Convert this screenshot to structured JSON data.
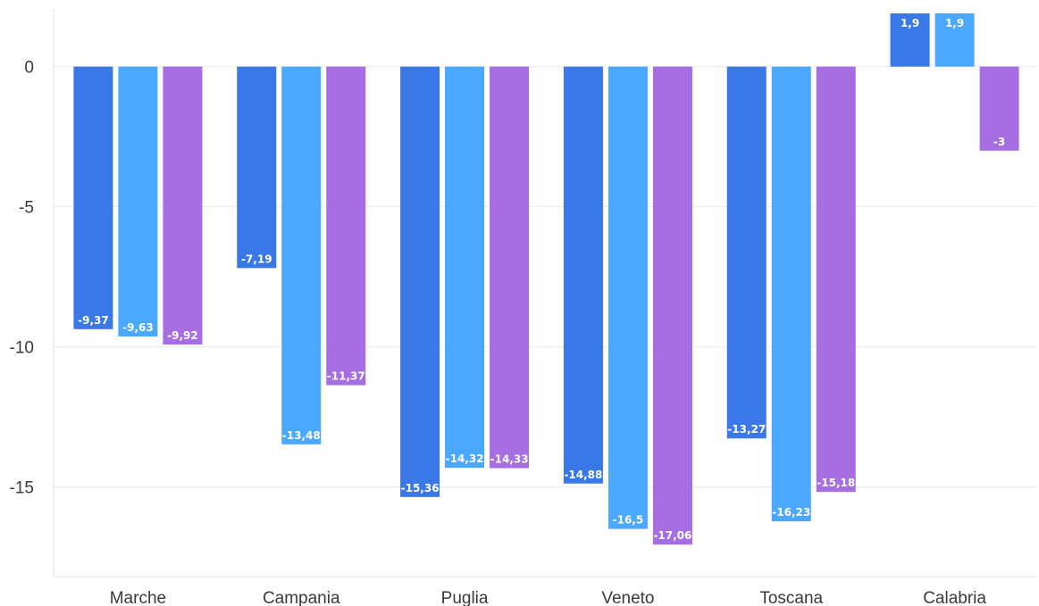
{
  "chart_data": {
    "type": "bar",
    "categories": [
      "Marche",
      "Campania",
      "Puglia",
      "Veneto",
      "Toscana",
      "Calabria"
    ],
    "series": [
      {
        "color": "#3b78e7",
        "values": [
          -9.37,
          -7.19,
          -15.36,
          -14.88,
          -13.27,
          1.9
        ],
        "labels": [
          "-9,37",
          "-7,19",
          "-15,36",
          "-14,88",
          "-13,27",
          "1,9"
        ]
      },
      {
        "color": "#4aa8ff",
        "values": [
          -9.63,
          -13.48,
          -14.32,
          -16.5,
          -16.23,
          1.9
        ],
        "labels": [
          "-9,63",
          "-13,48",
          "-14,32",
          "-16,5",
          "-16,23",
          "1,9"
        ]
      },
      {
        "color": "#a66ee0",
        "values": [
          -9.92,
          -11.37,
          -14.33,
          -17.06,
          -15.18,
          -3
        ],
        "labels": [
          "-9,92",
          "-11,37",
          "-14,33",
          "-17,06",
          "-15,18",
          "-3"
        ]
      }
    ],
    "y_ticks": [
      {
        "value": 0,
        "label": "0"
      },
      {
        "value": -5,
        "label": "-5"
      },
      {
        "value": -10,
        "label": "-10"
      },
      {
        "value": -15,
        "label": "-15"
      }
    ],
    "ylim": [
      -18.2,
      1.9
    ],
    "grid": true,
    "title": "",
    "xlabel": "",
    "ylabel": ""
  }
}
